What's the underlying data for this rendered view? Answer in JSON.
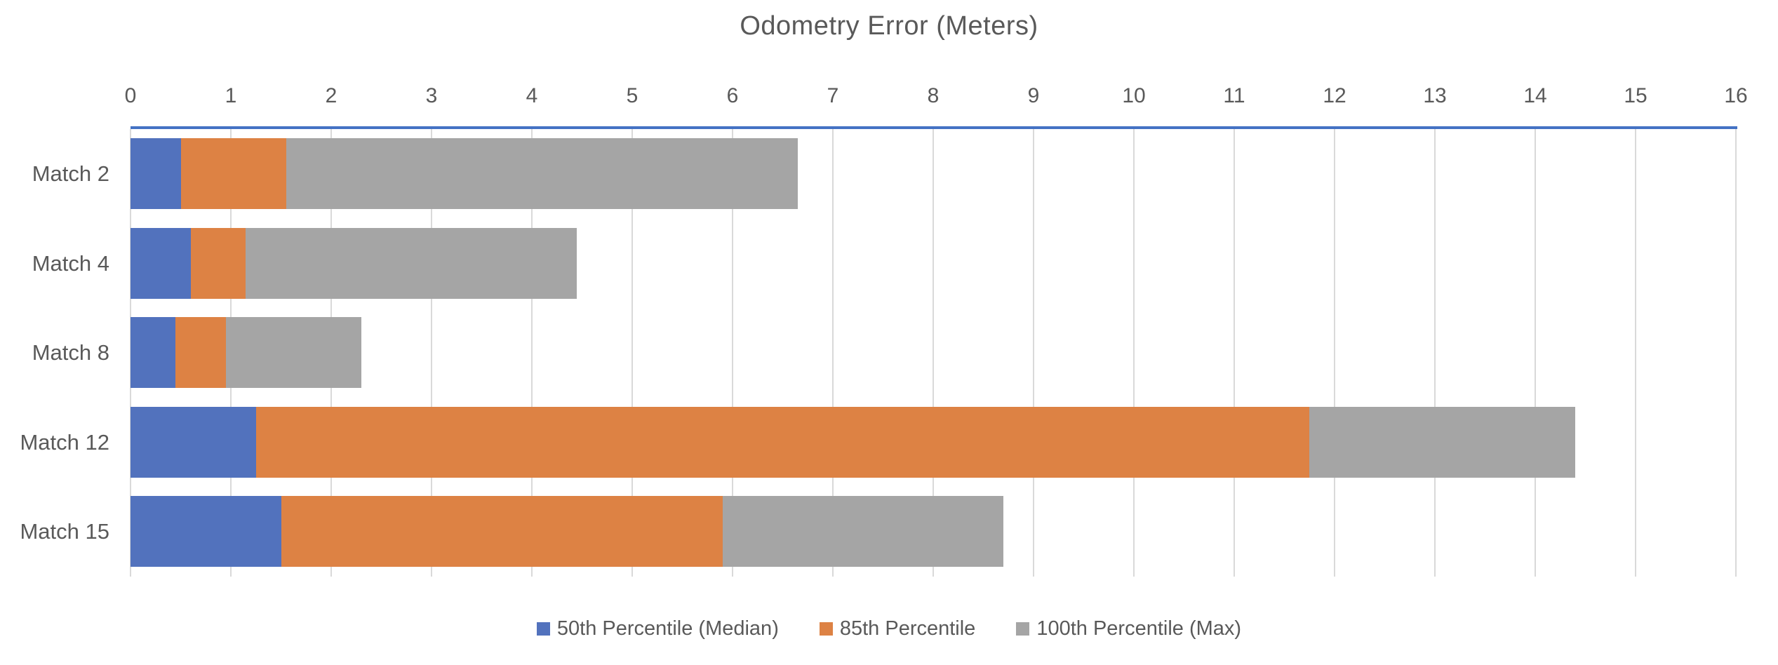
{
  "title": "Odometry Error (Meters)",
  "chart_data": {
    "type": "bar",
    "orientation": "horizontal",
    "stacked": true,
    "title": "Odometry Error (Meters)",
    "categories": [
      "Match 2",
      "Match 4",
      "Match 8",
      "Match 12",
      "Match 15"
    ],
    "series": [
      {
        "name": "50th Percentile (Median)",
        "color": "#5272BD",
        "values": [
          0.5,
          0.6,
          0.45,
          1.25,
          1.5
        ]
      },
      {
        "name": "85th Percentile",
        "color": "#DD8244",
        "values": [
          1.05,
          0.55,
          0.5,
          10.5,
          4.4
        ]
      },
      {
        "name": "100th Percentile (Max)",
        "color": "#A5A5A5",
        "values": [
          5.1,
          3.3,
          1.35,
          2.65,
          2.8
        ]
      }
    ],
    "stacked_totals": [
      6.65,
      4.45,
      2.3,
      14.4,
      8.7
    ],
    "xlim": [
      0,
      16
    ],
    "x_ticks": [
      "0",
      "1",
      "2",
      "3",
      "4",
      "5",
      "6",
      "7",
      "8",
      "9",
      "10",
      "11",
      "12",
      "13",
      "14",
      "15",
      "16"
    ],
    "grid": true,
    "legend_position": "bottom",
    "colors": {
      "axis_line": "#4472C4",
      "gridline": "#D9D9D9",
      "text": "#595959",
      "background": "#FFFFFF"
    }
  }
}
